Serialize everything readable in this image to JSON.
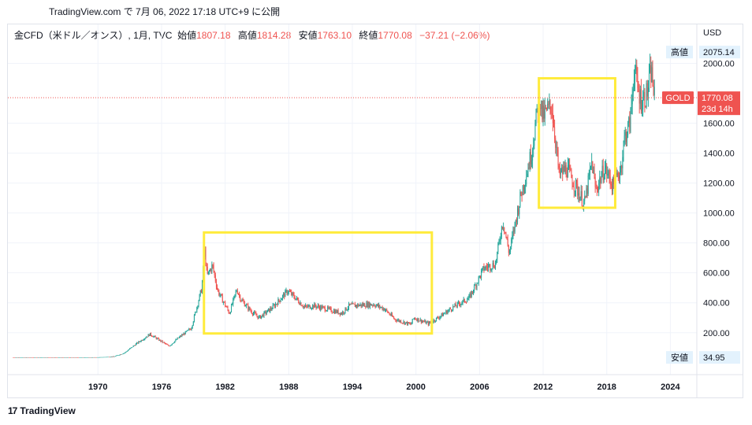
{
  "caption": "TradingView.com で 7月 06, 2022 17:18 UTC+9 に公開",
  "legend": {
    "symbol": "金CFD（米ドル／オンス）, 1月, TVC",
    "open_label": "始値",
    "open": "1807.18",
    "high_label": "高値",
    "high": "1814.28",
    "low_label": "安値",
    "low": "1763.10",
    "close_label": "終値",
    "close": "1770.08",
    "change": "−37.21 (−2.06%)"
  },
  "currency": "USD",
  "badges": {
    "high_label": "高値",
    "high_value": "2075.14",
    "low_label": "安値",
    "low_value": "34.95",
    "symbol": "GOLD",
    "price": "1770.08",
    "countdown": "23d 14h"
  },
  "footer": "TradingView",
  "colors": {
    "up": "#26a69a",
    "down": "#ef5350",
    "highlight": "#ffeb3b",
    "grid": "#f0f3fa",
    "axis_text": "#131722"
  },
  "chart_data": {
    "type": "candlestick",
    "interval": "monthly",
    "xlim": [
      1961.5,
      2026.5
    ],
    "ylim": [
      -80,
      2260
    ],
    "x_ticks": [
      "1970",
      "1976",
      "1982",
      "1988",
      "1994",
      "2000",
      "2006",
      "2012",
      "2018",
      "2024"
    ],
    "y_ticks": [
      "200.00",
      "400.00",
      "600.00",
      "800.00",
      "1000.00",
      "1200.00",
      "1400.00",
      "1600.00",
      "2000.00"
    ],
    "price_anchors": [
      [
        1962.0,
        35
      ],
      [
        1968.0,
        35
      ],
      [
        1970.0,
        36
      ],
      [
        1971.5,
        40
      ],
      [
        1972.5,
        65
      ],
      [
        1973.5,
        120
      ],
      [
        1974.9,
        190
      ],
      [
        1976.7,
        110
      ],
      [
        1977.5,
        160
      ],
      [
        1978.8,
        230
      ],
      [
        1979.8,
        500
      ],
      [
        1980.05,
        760
      ],
      [
        1980.3,
        580
      ],
      [
        1980.8,
        650
      ],
      [
        1981.3,
        480
      ],
      [
        1982.4,
        330
      ],
      [
        1983.1,
        490
      ],
      [
        1983.5,
        420
      ],
      [
        1984.5,
        340
      ],
      [
        1985.2,
        300
      ],
      [
        1986.5,
        370
      ],
      [
        1987.9,
        480
      ],
      [
        1988.8,
        420
      ],
      [
        1989.5,
        370
      ],
      [
        1990.4,
        380
      ],
      [
        1991.5,
        360
      ],
      [
        1993.0,
        330
      ],
      [
        1993.7,
        380
      ],
      [
        1996.0,
        390
      ],
      [
        1997.0,
        360
      ],
      [
        1998.0,
        290
      ],
      [
        1999.5,
        255
      ],
      [
        1999.8,
        300
      ],
      [
        2001.2,
        260
      ],
      [
        2002.5,
        320
      ],
      [
        2003.5,
        370
      ],
      [
        2005.0,
        430
      ],
      [
        2006.4,
        630
      ],
      [
        2007.5,
        660
      ],
      [
        2008.2,
        950
      ],
      [
        2008.8,
        730
      ],
      [
        2009.9,
        1120
      ],
      [
        2010.9,
        1400
      ],
      [
        2011.65,
        1790
      ],
      [
        2011.95,
        1640
      ],
      [
        2012.8,
        1720
      ],
      [
        2013.3,
        1400
      ],
      [
        2013.5,
        1250
      ],
      [
        2014.2,
        1300
      ],
      [
        2014.9,
        1200
      ],
      [
        2015.9,
        1060
      ],
      [
        2016.6,
        1340
      ],
      [
        2016.95,
        1150
      ],
      [
        2017.8,
        1300
      ],
      [
        2018.6,
        1180
      ],
      [
        2019.3,
        1290
      ],
      [
        2019.7,
        1510
      ],
      [
        2020.2,
        1600
      ],
      [
        2020.6,
        1980
      ],
      [
        2020.9,
        1830
      ],
      [
        2021.3,
        1750
      ],
      [
        2021.8,
        1800
      ],
      [
        2022.2,
        1950
      ],
      [
        2022.5,
        1770
      ]
    ],
    "annotations": [
      {
        "type": "rectangle",
        "x_range": [
          1980.0,
          2001.5
        ],
        "y_range": [
          195,
          870
        ]
      },
      {
        "type": "rectangle",
        "x_range": [
          2011.6,
          2018.8
        ],
        "y_range": [
          1035,
          1900
        ]
      }
    ],
    "last_price": 1770.08,
    "high": 2075.14,
    "low": 34.95
  }
}
